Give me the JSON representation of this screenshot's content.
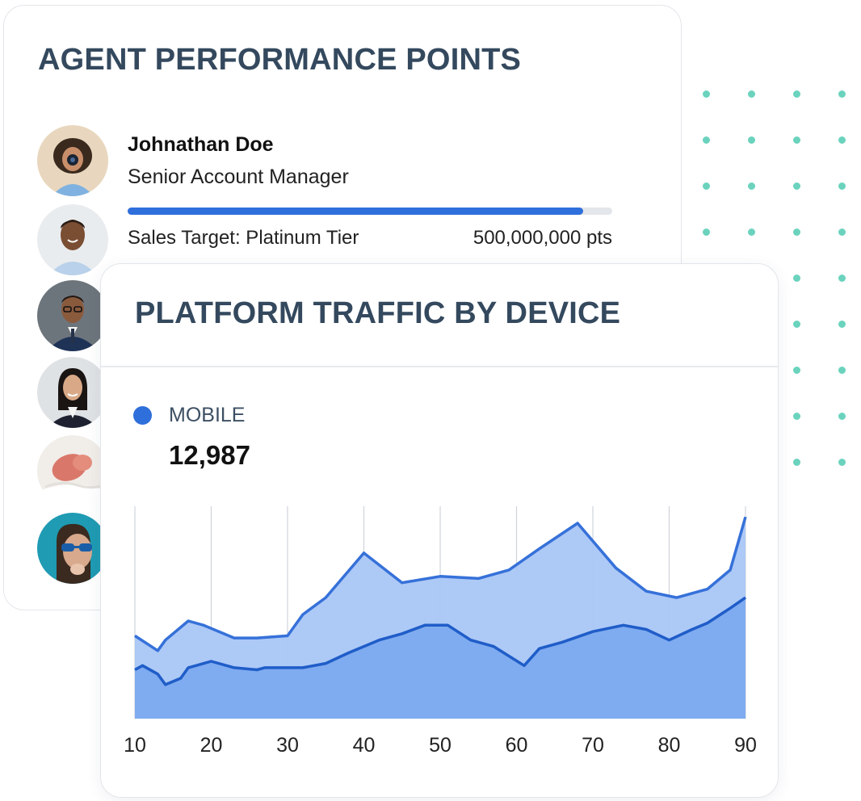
{
  "agent_card": {
    "title": "AGENT PERFORMANCE POINTS",
    "featured_agent": {
      "name": "Johnathan Doe",
      "role": "Senior Account Manager",
      "target_label": "Sales Target: Platinum Tier",
      "target_value": "500,000,000 pts",
      "progress": 0.94
    },
    "avatars": [
      "photographer",
      "man-smiling",
      "man-glasses-suit",
      "woman-blazer",
      "baby-sleeping",
      "woman-sunglasses"
    ]
  },
  "traffic_card": {
    "title": "PLATFORM TRAFFIC BY DEVICE",
    "legend": {
      "label": "MOBILE",
      "value": "12,987",
      "color": "#2f6fdb"
    }
  },
  "colors": {
    "title": "#34495e",
    "accent": "#2f6fdb",
    "dots": "#6bd3bd",
    "area_top": "#a9c6f5",
    "area_bottom": "#7aa7ef"
  },
  "chart_data": {
    "type": "area",
    "xlim": [
      10,
      90
    ],
    "ylim": [
      0,
      100
    ],
    "xticks": [
      10,
      20,
      30,
      40,
      50,
      60,
      70,
      80,
      90
    ],
    "grid": true,
    "series": [
      {
        "x": [
          10,
          13,
          14,
          17,
          19,
          23,
          26,
          30,
          32,
          35,
          40,
          45,
          50,
          55,
          59,
          63,
          68,
          73,
          77,
          81,
          85,
          88,
          90
        ],
        "values": [
          39,
          32,
          37,
          46,
          44,
          38,
          38,
          39,
          49,
          57,
          78,
          64,
          67,
          66,
          70,
          80,
          92,
          71,
          60,
          57,
          61,
          70,
          95
        ]
      },
      {
        "x": [
          10,
          11,
          13,
          14,
          16,
          17,
          18,
          20,
          23,
          26,
          27,
          32,
          35,
          38,
          42,
          45,
          48,
          51,
          54,
          57,
          61,
          63,
          66,
          70,
          74,
          77,
          80,
          83,
          85,
          88,
          90
        ],
        "values": [
          23,
          25,
          21,
          16,
          19,
          24,
          25,
          27,
          24,
          23,
          24,
          24,
          26,
          31,
          37,
          40,
          44,
          44,
          37,
          34,
          25,
          33,
          36,
          41,
          44,
          42,
          37,
          42,
          45,
          52,
          57
        ]
      }
    ]
  }
}
